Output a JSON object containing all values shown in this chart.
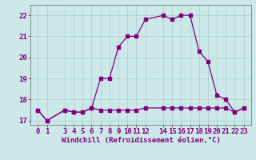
{
  "xlabel": "Windchill (Refroidissement éolien,°C)",
  "x_hours": [
    0,
    1,
    3,
    4,
    5,
    6,
    7,
    8,
    9,
    10,
    11,
    12,
    14,
    15,
    16,
    17,
    18,
    19,
    20,
    21,
    22,
    23
  ],
  "temp_values": [
    17.5,
    17.0,
    17.5,
    17.4,
    17.4,
    17.6,
    19.0,
    19.0,
    20.5,
    21.0,
    21.0,
    21.8,
    22.0,
    21.8,
    22.0,
    22.0,
    20.3,
    19.8,
    18.2,
    18.0,
    17.4,
    17.6
  ],
  "windchill_values": [
    17.5,
    17.0,
    17.5,
    17.4,
    17.4,
    17.6,
    17.5,
    17.5,
    17.5,
    17.5,
    17.5,
    17.6,
    17.6,
    17.6,
    17.6,
    17.6,
    17.6,
    17.6,
    17.6,
    17.6,
    17.4,
    17.6
  ],
  "line_color": "#800080",
  "bg_color": "#cce8e8",
  "grid_color": "#aacccc",
  "ylim": [
    16.8,
    22.5
  ],
  "yticks": [
    17,
    18,
    19,
    20,
    21,
    22
  ],
  "xlim": [
    -0.8,
    23.8
  ],
  "tick_label_fontsize": 6.5,
  "axis_label_fontsize": 6.5
}
